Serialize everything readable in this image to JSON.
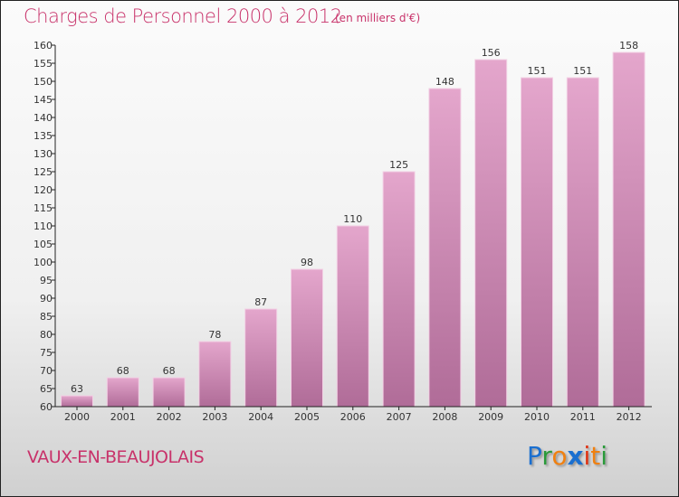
{
  "chart_data": {
    "type": "bar",
    "title": "Charges de Personnel 2000 à 2012",
    "subtitle": "(en milliers d'€)",
    "categories": [
      "2000",
      "2001",
      "2002",
      "2003",
      "2004",
      "2005",
      "2006",
      "2007",
      "2008",
      "2009",
      "2010",
      "2011",
      "2012"
    ],
    "values": [
      63,
      68,
      68,
      78,
      87,
      98,
      110,
      125,
      148,
      156,
      151,
      151,
      158
    ],
    "ylim": [
      60,
      160
    ],
    "ytick_step": 5,
    "xlabel": "",
    "ylabel": "",
    "bar_color": "#c878a8"
  },
  "location": "VAUX-EN-BEAUJOLAIS",
  "logo": {
    "letters": [
      "P",
      "r",
      "o",
      "x",
      "i",
      "t",
      "i"
    ],
    "colors": [
      "#1a6fd0",
      "#2a9a3a",
      "#f08010",
      "#1a6fd0",
      "#e03010",
      "#f08010",
      "#2a9a3a"
    ]
  }
}
